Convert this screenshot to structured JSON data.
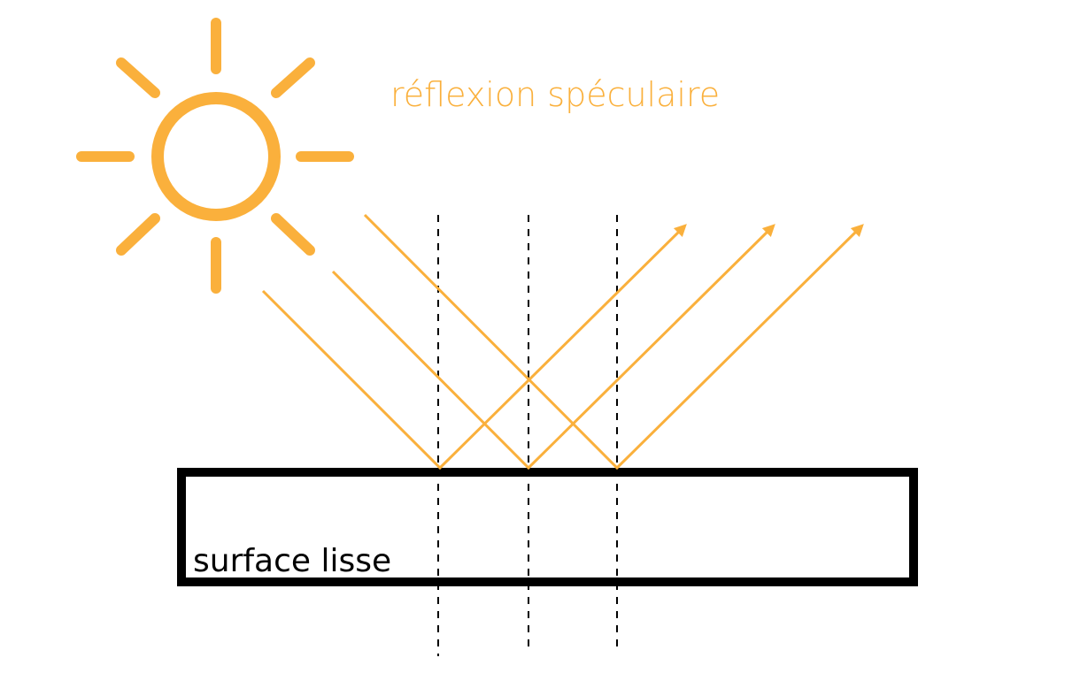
{
  "title": "réflexion spéculaire",
  "surface_label": "surface lisse",
  "colors": {
    "light": "#FAB03C",
    "surface": "#000000",
    "normal": "#000000",
    "background": "#FFFFFF"
  },
  "icons": {
    "sun": "sun-icon"
  },
  "rays": [
    {
      "name": "ray-1"
    },
    {
      "name": "ray-2"
    },
    {
      "name": "ray-3"
    }
  ],
  "normals": [
    {
      "name": "normal-1"
    },
    {
      "name": "normal-2"
    },
    {
      "name": "normal-3"
    }
  ]
}
